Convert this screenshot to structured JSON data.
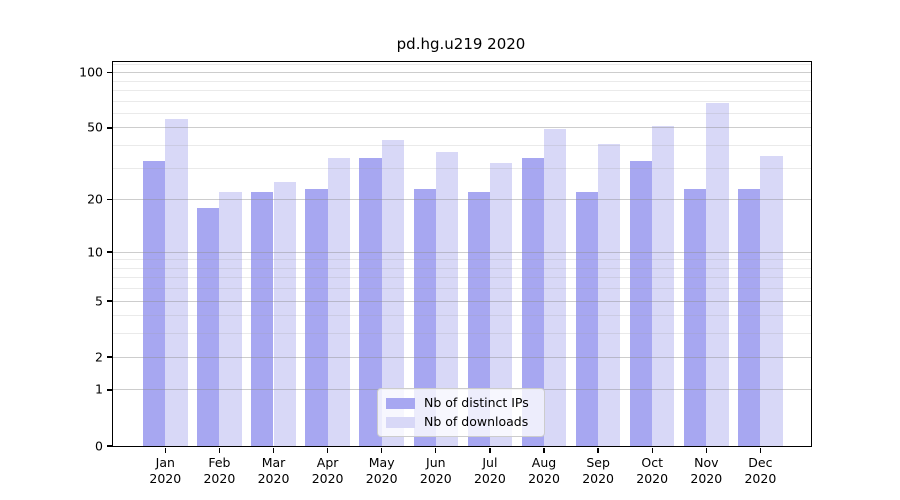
{
  "title": "pd.hg.u219 2020",
  "chart_data": {
    "type": "bar",
    "title": "pd.hg.u219 2020",
    "categories": [
      "Jan",
      "Feb",
      "Mar",
      "Apr",
      "May",
      "Jun",
      "Jul",
      "Aug",
      "Sep",
      "Oct",
      "Nov",
      "Dec"
    ],
    "year": "2020",
    "series": [
      {
        "name": "Nb of distinct IPs",
        "color": "#a7a7f1",
        "values": [
          33,
          18,
          22,
          23,
          34,
          23,
          22,
          34,
          22,
          33,
          23,
          23
        ]
      },
      {
        "name": "Nb of downloads",
        "color": "#d8d8f7",
        "values": [
          56,
          22,
          25,
          34,
          43,
          37,
          32,
          49,
          41,
          51,
          68,
          35
        ]
      }
    ],
    "y_axis": {
      "scale": "log1p",
      "ticks": [
        100,
        50,
        20,
        10,
        5,
        2,
        1,
        0
      ],
      "minor_ticks": [
        3,
        4,
        6,
        7,
        8,
        9,
        30,
        40,
        60,
        70,
        80,
        90,
        110
      ],
      "min": 0,
      "max": 114
    },
    "xlabel": "",
    "ylabel": "",
    "grid": true,
    "legend_position": "lower center"
  },
  "legend": {
    "items": [
      "Nb of distinct IPs",
      "Nb of downloads"
    ]
  }
}
